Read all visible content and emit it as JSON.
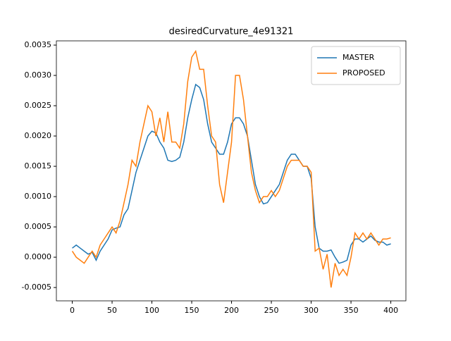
{
  "chart_data": {
    "type": "line",
    "title": "desiredCurvature_4e91321",
    "x": [
      0,
      5,
      10,
      15,
      20,
      25,
      30,
      35,
      40,
      45,
      50,
      55,
      60,
      65,
      70,
      75,
      80,
      85,
      90,
      95,
      100,
      105,
      110,
      115,
      120,
      125,
      130,
      135,
      140,
      145,
      150,
      155,
      160,
      165,
      170,
      175,
      180,
      185,
      190,
      195,
      200,
      205,
      210,
      215,
      220,
      225,
      230,
      235,
      240,
      245,
      250,
      255,
      260,
      265,
      270,
      275,
      280,
      285,
      290,
      295,
      300,
      305,
      310,
      315,
      320,
      325,
      330,
      335,
      340,
      345,
      350,
      355,
      360,
      365,
      370,
      375,
      380,
      385,
      390,
      395,
      400
    ],
    "series": [
      {
        "name": "MASTER",
        "color": "#1f77b4",
        "values": [
          0.00015,
          0.0002,
          0.00015,
          0.0001,
          5e-05,
          8e-05,
          -5e-05,
          0.0001,
          0.0002,
          0.0003,
          0.00045,
          0.00048,
          0.0005,
          0.0007,
          0.0008,
          0.0011,
          0.0014,
          0.0016,
          0.0018,
          0.002,
          0.00208,
          0.00205,
          0.0019,
          0.0018,
          0.0016,
          0.00158,
          0.0016,
          0.00165,
          0.0019,
          0.0023,
          0.0026,
          0.00285,
          0.0028,
          0.0026,
          0.0022,
          0.0019,
          0.0018,
          0.0017,
          0.0017,
          0.0019,
          0.0022,
          0.0023,
          0.0023,
          0.0022,
          0.002,
          0.0016,
          0.0012,
          0.001,
          0.00088,
          0.0009,
          0.001,
          0.0011,
          0.0012,
          0.0014,
          0.0016,
          0.0017,
          0.0017,
          0.0016,
          0.0015,
          0.0015,
          0.0013,
          0.0005,
          0.00015,
          0.0001,
          0.0001,
          0.00012,
          0.0,
          -0.0001,
          -8e-05,
          -5e-05,
          0.0002,
          0.0003,
          0.0003,
          0.00025,
          0.0003,
          0.00035,
          0.00028,
          0.00025,
          0.00025,
          0.0002,
          0.00022
        ]
      },
      {
        "name": "PROPOSED",
        "color": "#ff7f0e",
        "values": [
          0.0001,
          0.0,
          -5e-05,
          -0.0001,
          0.0,
          0.0001,
          0.0,
          0.0002,
          0.0003,
          0.0004,
          0.0005,
          0.0004,
          0.0006,
          0.0009,
          0.0012,
          0.0016,
          0.0015,
          0.0019,
          0.0022,
          0.0025,
          0.0024,
          0.002,
          0.0023,
          0.0019,
          0.0024,
          0.0019,
          0.0019,
          0.0018,
          0.0022,
          0.0029,
          0.0033,
          0.0034,
          0.0031,
          0.0031,
          0.0025,
          0.002,
          0.0019,
          0.0012,
          0.0009,
          0.0014,
          0.0019,
          0.003,
          0.003,
          0.0026,
          0.002,
          0.0014,
          0.0011,
          0.0009,
          0.001,
          0.001,
          0.0011,
          0.001,
          0.0011,
          0.0013,
          0.0015,
          0.0016,
          0.0016,
          0.0016,
          0.0015,
          0.0015,
          0.0014,
          0.0001,
          0.00015,
          -0.0002,
          5e-05,
          -0.0005,
          -0.0001,
          -0.0003,
          -0.0002,
          -0.0003,
          0.0,
          0.0004,
          0.0003,
          0.0004,
          0.0003,
          0.0004,
          0.0003,
          0.0002,
          0.0003,
          0.0003,
          0.00032
        ]
      }
    ],
    "xlim": [
      -19.95,
      418.95
    ],
    "xticks": [
      0,
      50,
      100,
      150,
      200,
      250,
      300,
      350,
      400
    ],
    "ylim": [
      -0.00072,
      0.00357
    ],
    "yticks": [
      -0.0005,
      {
        "value": 0,
        "label": "0.0000"
      },
      0.0005,
      {
        "value": 0.001,
        "label": "0.0010"
      },
      0.0015,
      {
        "value": 0.002,
        "label": "0.0020"
      },
      0.0025,
      {
        "value": 0.003,
        "label": "0.0030"
      },
      0.0035
    ],
    "legend": "upper right"
  }
}
